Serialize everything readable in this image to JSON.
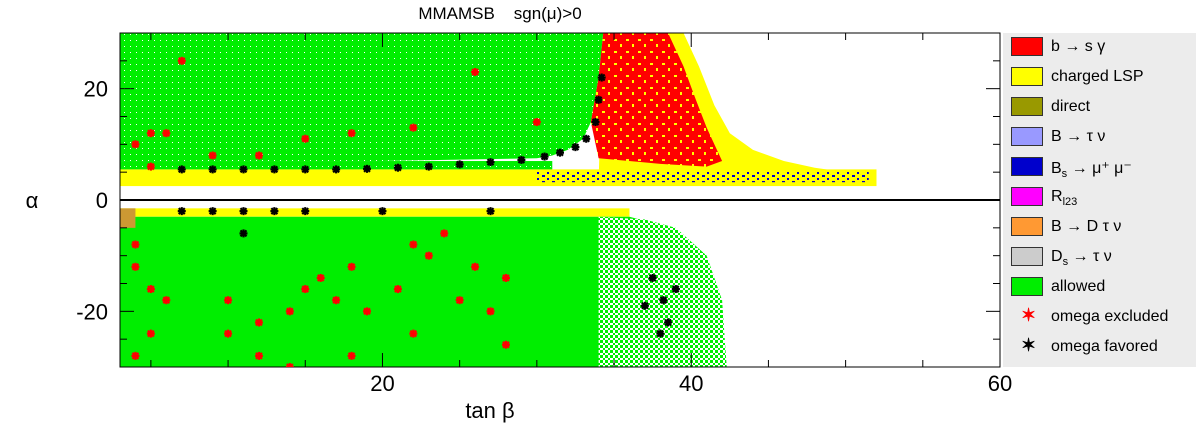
{
  "chart_data": {
    "type": "scatter",
    "title": "MMAMSB    sgn(μ)>0",
    "xlabel": "tan β",
    "ylabel": "α",
    "xlim": [
      3,
      60
    ],
    "ylim": [
      -30,
      30
    ],
    "xticks": [
      20,
      40,
      60
    ],
    "yticks": [
      -20,
      0,
      20
    ],
    "regions": [
      {
        "name": "allowed",
        "color": "#00ee00",
        "description": "green band, upper plane",
        "x": [
          3,
          34
        ],
        "y": [
          3.5,
          30
        ]
      },
      {
        "name": "charged LSP",
        "color": "#ffff00",
        "description": "thin yellow strip near alpha 3-5 and wedge beyond tan beta 34"
      },
      {
        "name": "b → s γ",
        "color": "#ff0000",
        "description": "region tan beta 34-42, alpha 5-30"
      },
      {
        "name": "B_s → μ⁺ μ⁻",
        "color": "#0000cc",
        "description": "points near alpha 3-5, tan beta 30-52"
      },
      {
        "name": "allowed",
        "color": "#00ee00",
        "description": "lower plane",
        "x": [
          3,
          42
        ],
        "y": [
          -30,
          -2
        ]
      }
    ],
    "series": [
      {
        "name": "omega excluded",
        "marker": "star",
        "color": "#ff0000",
        "points": [
          [
            7,
            25
          ],
          [
            5,
            12
          ],
          [
            6,
            12
          ],
          [
            4,
            10
          ],
          [
            9,
            8
          ],
          [
            12,
            8
          ],
          [
            15,
            11
          ],
          [
            18,
            12
          ],
          [
            22,
            13
          ],
          [
            26,
            23
          ],
          [
            30,
            14
          ],
          [
            5,
            6
          ],
          [
            4,
            -8
          ],
          [
            4,
            -12
          ],
          [
            5,
            -16
          ],
          [
            4,
            -28
          ],
          [
            6,
            -18
          ],
          [
            5,
            -24
          ],
          [
            10,
            -24
          ],
          [
            12,
            -22
          ],
          [
            14,
            -20
          ],
          [
            15,
            -16
          ],
          [
            16,
            -14
          ],
          [
            17,
            -18
          ],
          [
            18,
            -12
          ],
          [
            19,
            -20
          ],
          [
            21,
            -16
          ],
          [
            22,
            -8
          ],
          [
            23,
            -10
          ],
          [
            24,
            -6
          ],
          [
            25,
            -18
          ],
          [
            26,
            -12
          ],
          [
            27,
            -20
          ],
          [
            28,
            -14
          ],
          [
            14,
            -30
          ],
          [
            18,
            -28
          ],
          [
            22,
            -24
          ],
          [
            12,
            -28
          ],
          [
            10,
            -18
          ],
          [
            28,
            -26
          ]
        ]
      },
      {
        "name": "omega favored",
        "marker": "star",
        "color": "#000000",
        "points": [
          [
            7,
            5.5
          ],
          [
            9,
            5.5
          ],
          [
            11,
            5.5
          ],
          [
            13,
            5.5
          ],
          [
            15,
            5.5
          ],
          [
            17,
            5.5
          ],
          [
            19,
            5.6
          ],
          [
            21,
            5.8
          ],
          [
            23,
            6
          ],
          [
            25,
            6.4
          ],
          [
            27,
            6.8
          ],
          [
            29,
            7.2
          ],
          [
            30.5,
            7.8
          ],
          [
            31.5,
            8.5
          ],
          [
            32.5,
            9.5
          ],
          [
            33.2,
            11
          ],
          [
            33.8,
            14
          ],
          [
            34,
            18
          ],
          [
            34.2,
            22
          ],
          [
            7,
            -2
          ],
          [
            9,
            -2
          ],
          [
            11,
            -2
          ],
          [
            13,
            -2
          ],
          [
            15,
            -2
          ],
          [
            20,
            -2
          ],
          [
            27,
            -2
          ],
          [
            11,
            -6
          ],
          [
            37,
            -19
          ],
          [
            37.5,
            -14
          ],
          [
            38,
            -24
          ],
          [
            38.5,
            -22
          ],
          [
            39,
            -16
          ],
          [
            38.2,
            -18
          ]
        ]
      }
    ],
    "legend": {
      "position": "right",
      "entries": [
        {
          "label": "b → s γ",
          "kind": "box",
          "color": "#ff0000"
        },
        {
          "label": "charged LSP",
          "kind": "box",
          "color": "#ffff00"
        },
        {
          "label": "direct",
          "kind": "box",
          "color": "#999900"
        },
        {
          "label": "B → τ ν",
          "kind": "box",
          "color": "#9999ff"
        },
        {
          "label": "B",
          "sub": "s",
          "rest": " → μ⁺ μ⁻",
          "kind": "box",
          "color": "#0000cc"
        },
        {
          "label": "R",
          "sub": "l23",
          "rest": "",
          "kind": "box",
          "color": "#ff00ff"
        },
        {
          "label": "B → D τ ν",
          "kind": "box",
          "color": "#ff9933"
        },
        {
          "label": "D",
          "sub": "s",
          "rest": " → τ ν",
          "kind": "box",
          "color": "#cccccc"
        },
        {
          "label": "allowed",
          "kind": "box",
          "color": "#00ee00"
        },
        {
          "label": "omega excluded",
          "kind": "marker",
          "color": "#ff0000"
        },
        {
          "label": "omega favored",
          "kind": "marker",
          "color": "#000000"
        }
      ]
    }
  }
}
